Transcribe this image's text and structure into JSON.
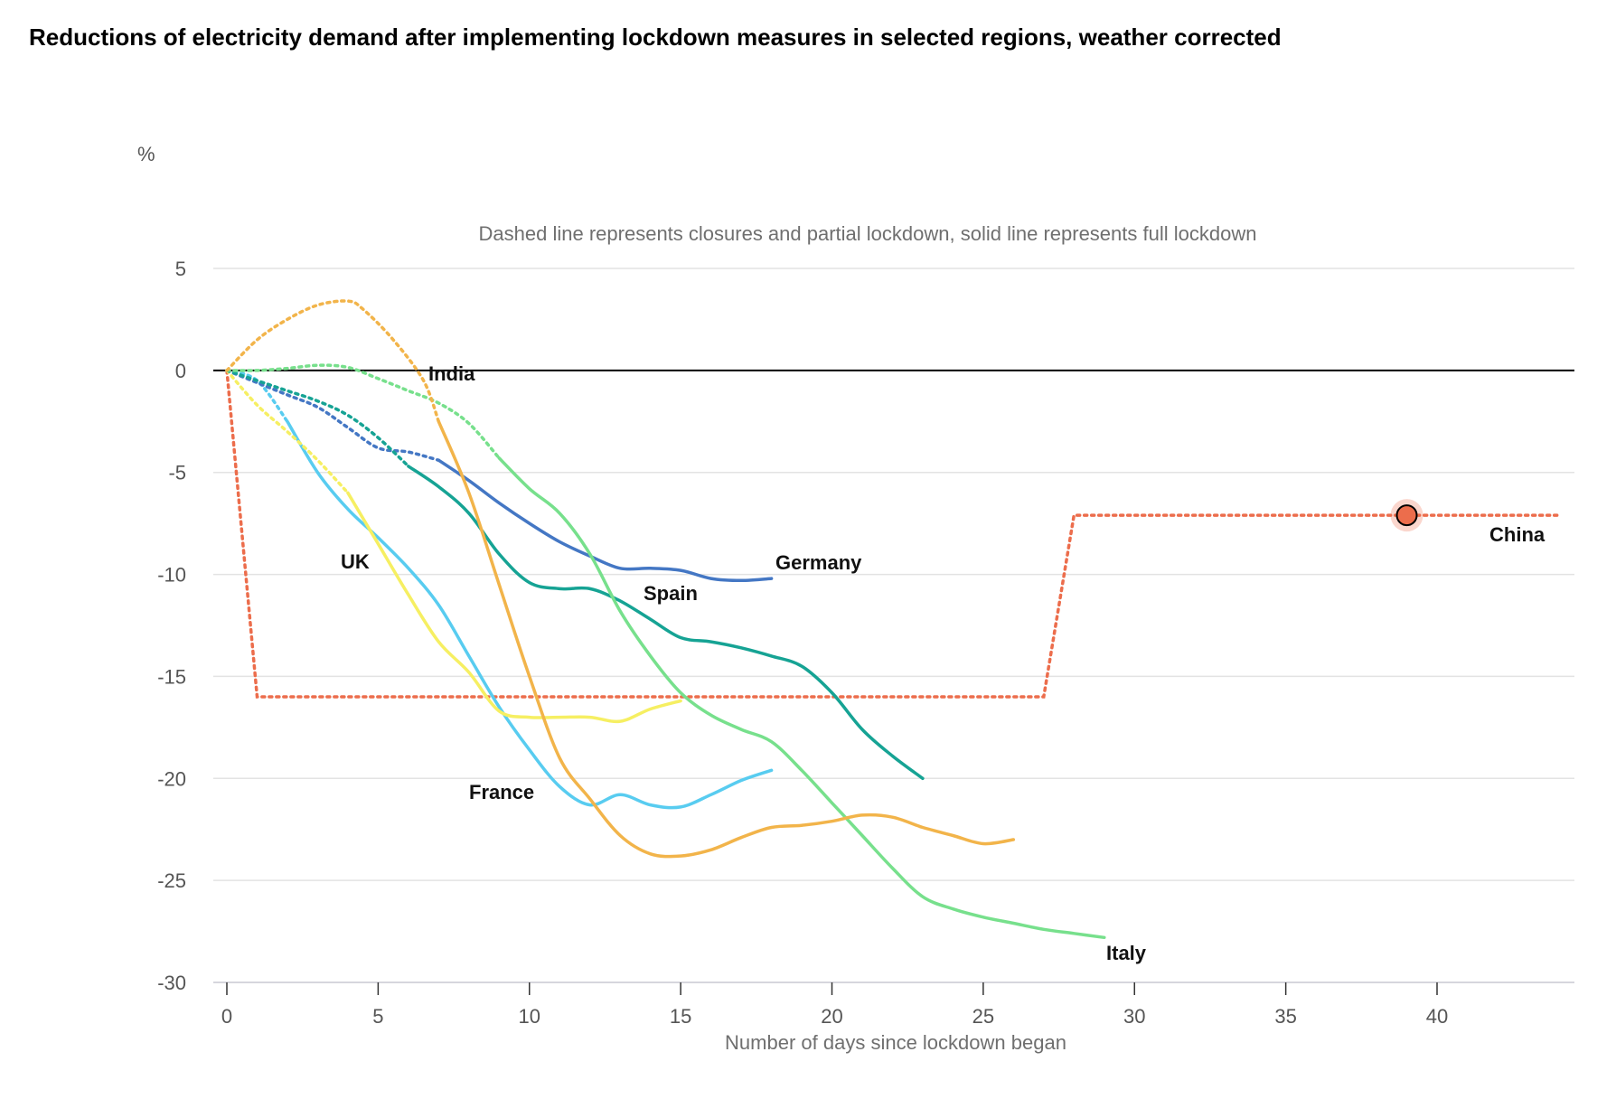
{
  "chart_data": {
    "type": "line",
    "title": "Reductions of electricity demand after implementing lockdown measures in selected regions, weather corrected",
    "ylabel": "%",
    "xlabel": "Number of days since lockdown began",
    "annotation": "Dashed line represents closures and partial lockdown, solid line represents full lockdown",
    "ylim": [
      -30,
      5
    ],
    "xlim": [
      0,
      44
    ],
    "yticks": [
      5,
      0,
      -5,
      -10,
      -15,
      -20,
      -25,
      -30
    ],
    "xticks": [
      0,
      5,
      10,
      15,
      20,
      25,
      30,
      35,
      40
    ],
    "grid": true,
    "legend": "none",
    "series": [
      {
        "name": "India",
        "color": "#f2b44a",
        "dashed": [
          [
            0,
            0
          ],
          [
            1,
            1.5
          ],
          [
            2,
            2.5
          ],
          [
            3,
            3.2
          ],
          [
            4,
            3.4
          ],
          [
            4.5,
            3
          ],
          [
            5.5,
            1.5
          ],
          [
            6.5,
            -0.5
          ],
          [
            7,
            -2.5
          ]
        ],
        "solid": [
          [
            7,
            -2.5
          ],
          [
            8,
            -6
          ],
          [
            9,
            -10.5
          ],
          [
            10,
            -15
          ],
          [
            11,
            -19
          ],
          [
            12,
            -21
          ],
          [
            13,
            -22.8
          ],
          [
            14,
            -23.7
          ],
          [
            15,
            -23.8
          ],
          [
            16,
            -23.5
          ],
          [
            17,
            -22.9
          ],
          [
            18,
            -22.4
          ],
          [
            19,
            -22.3
          ],
          [
            20,
            -22.1
          ],
          [
            21,
            -21.8
          ],
          [
            22,
            -21.9
          ],
          [
            23,
            -22.4
          ],
          [
            24,
            -22.8
          ],
          [
            25,
            -23.2
          ],
          [
            26,
            -23
          ]
        ]
      },
      {
        "name": "Italy",
        "color": "#77e08c",
        "dashed": [
          [
            0,
            0
          ],
          [
            1,
            0
          ],
          [
            2,
            0.1
          ],
          [
            3,
            0.25
          ],
          [
            4,
            0.15
          ],
          [
            5,
            -0.4
          ],
          [
            6,
            -1
          ],
          [
            7,
            -1.6
          ],
          [
            8,
            -2.6
          ],
          [
            9,
            -4.3
          ]
        ],
        "solid": [
          [
            9,
            -4.3
          ],
          [
            10,
            -5.8
          ],
          [
            11,
            -7
          ],
          [
            12,
            -9
          ],
          [
            13,
            -11.8
          ],
          [
            14,
            -14
          ],
          [
            15,
            -15.8
          ],
          [
            16,
            -16.9
          ],
          [
            17,
            -17.6
          ],
          [
            18,
            -18.2
          ],
          [
            19,
            -19.6
          ],
          [
            20,
            -21.2
          ],
          [
            21,
            -22.8
          ],
          [
            22,
            -24.4
          ],
          [
            23,
            -25.8
          ],
          [
            24,
            -26.4
          ],
          [
            25,
            -26.8
          ],
          [
            26,
            -27.1
          ],
          [
            27,
            -27.4
          ],
          [
            28,
            -27.6
          ],
          [
            29,
            -27.8
          ]
        ]
      },
      {
        "name": "Spain",
        "color": "#16a394",
        "dashed": [
          [
            0,
            0
          ],
          [
            1,
            -0.5
          ],
          [
            2,
            -1
          ],
          [
            3,
            -1.5
          ],
          [
            4,
            -2.2
          ],
          [
            5,
            -3.3
          ],
          [
            6,
            -4.7
          ]
        ],
        "solid": [
          [
            6,
            -4.7
          ],
          [
            7,
            -5.7
          ],
          [
            8,
            -7
          ],
          [
            9,
            -9
          ],
          [
            10,
            -10.4
          ],
          [
            11,
            -10.7
          ],
          [
            12,
            -10.7
          ],
          [
            13,
            -11.3
          ],
          [
            14,
            -12.2
          ],
          [
            15,
            -13.1
          ],
          [
            16,
            -13.3
          ],
          [
            17,
            -13.6
          ],
          [
            18,
            -14
          ],
          [
            19,
            -14.5
          ],
          [
            20,
            -15.8
          ],
          [
            21,
            -17.6
          ],
          [
            22,
            -18.9
          ],
          [
            23,
            -20
          ]
        ]
      },
      {
        "name": "Germany",
        "color": "#4477c4",
        "dashed": [
          [
            0,
            0
          ],
          [
            1,
            -0.6
          ],
          [
            2,
            -1.2
          ],
          [
            3,
            -1.8
          ],
          [
            4,
            -2.8
          ],
          [
            5,
            -3.8
          ],
          [
            6,
            -4
          ],
          [
            7,
            -4.4
          ]
        ],
        "solid": [
          [
            7,
            -4.4
          ],
          [
            8,
            -5.4
          ],
          [
            9,
            -6.5
          ],
          [
            10,
            -7.5
          ],
          [
            11,
            -8.4
          ],
          [
            12,
            -9.1
          ],
          [
            13,
            -9.7
          ],
          [
            14,
            -9.7
          ],
          [
            15,
            -9.8
          ],
          [
            16,
            -10.2
          ],
          [
            17,
            -10.3
          ],
          [
            18,
            -10.2
          ]
        ]
      },
      {
        "name": "UK",
        "color": "#f6ef62",
        "dashed": [
          [
            0,
            0
          ],
          [
            1,
            -1.7
          ],
          [
            2,
            -3
          ],
          [
            3,
            -4.4
          ],
          [
            4,
            -6
          ]
        ],
        "solid": [
          [
            4,
            -6
          ],
          [
            5,
            -8.5
          ],
          [
            6,
            -11
          ],
          [
            7,
            -13.3
          ],
          [
            8,
            -14.8
          ],
          [
            9,
            -16.7
          ],
          [
            10,
            -17
          ],
          [
            11,
            -17
          ],
          [
            12,
            -17
          ],
          [
            13,
            -17.2
          ],
          [
            14,
            -16.6
          ],
          [
            15,
            -16.2
          ]
        ]
      },
      {
        "name": "France",
        "color": "#58ccf0",
        "dashed": [
          [
            0,
            0
          ],
          [
            1,
            -0.5
          ],
          [
            2,
            -2.5
          ]
        ],
        "solid": [
          [
            2,
            -2.5
          ],
          [
            3,
            -5
          ],
          [
            4,
            -6.8
          ],
          [
            5,
            -8.2
          ],
          [
            6,
            -9.7
          ],
          [
            7,
            -11.5
          ],
          [
            8,
            -14
          ],
          [
            9,
            -16.5
          ],
          [
            10,
            -18.6
          ],
          [
            11,
            -20.4
          ],
          [
            12,
            -21.3
          ],
          [
            13,
            -20.8
          ],
          [
            14,
            -21.3
          ],
          [
            15,
            -21.4
          ],
          [
            16,
            -20.8
          ],
          [
            17,
            -20.1
          ],
          [
            18,
            -19.6
          ]
        ]
      },
      {
        "name": "China",
        "color": "#ec6d4c",
        "dashed": [
          [
            0,
            0
          ],
          [
            1,
            -16
          ],
          [
            27,
            -16
          ],
          [
            28,
            -7.1
          ],
          [
            44,
            -7.1
          ]
        ],
        "solid": [],
        "highlight_point": [
          39,
          -7.1
        ]
      }
    ]
  }
}
